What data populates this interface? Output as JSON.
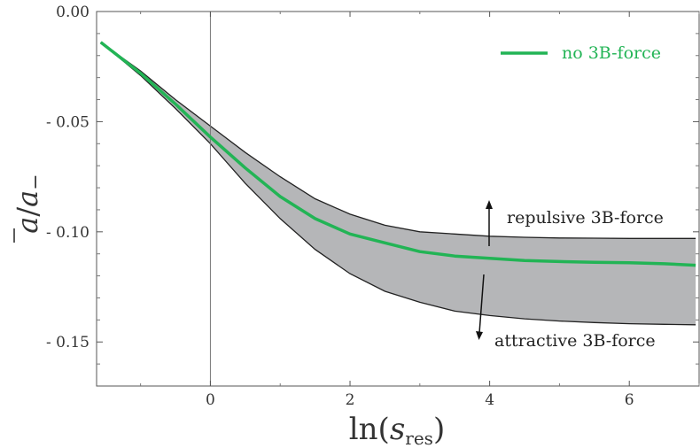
{
  "chart_data": {
    "type": "line",
    "xlabel": "ln(s_res)",
    "xlabel_parts": {
      "base": "ln(",
      "var": "s",
      "sub": "res",
      "close": ")"
    },
    "ylabel": "ā/a₋",
    "ylabel_parts": {
      "num": "a",
      "den": "a",
      "den_sub": "−"
    },
    "xlim": [
      -1.63,
      7.0
    ],
    "ylim": [
      -0.17,
      0.0
    ],
    "x_ticks": [
      0,
      2,
      4,
      6
    ],
    "x_tick_labels": [
      "0",
      "2",
      "4",
      "6"
    ],
    "y_ticks": [
      0.0,
      -0.05,
      -0.1,
      -0.15
    ],
    "y_tick_labels": [
      "0.00",
      "- 0.05",
      "- 0.10",
      "- 0.15"
    ],
    "vertical_line_x": 0,
    "grid": false,
    "legend_position": "top-right",
    "band": {
      "fill_color": "#b5b6b8",
      "line_color": "#222222",
      "x": [
        -1.57,
        -1.0,
        -0.5,
        0.0,
        0.5,
        1.0,
        1.5,
        2.0,
        2.5,
        3.0,
        3.5,
        4.0,
        4.5,
        5.0,
        5.5,
        6.0,
        6.5,
        6.95
      ],
      "upper": [
        -0.014,
        -0.027,
        -0.04,
        -0.052,
        -0.064,
        -0.075,
        -0.085,
        -0.092,
        -0.097,
        -0.1,
        -0.101,
        -0.102,
        -0.1025,
        -0.1028,
        -0.1029,
        -0.103,
        -0.103,
        -0.103
      ],
      "lower": [
        -0.014,
        -0.029,
        -0.044,
        -0.06,
        -0.078,
        -0.094,
        -0.108,
        -0.119,
        -0.127,
        -0.132,
        -0.136,
        -0.138,
        -0.1395,
        -0.1405,
        -0.1412,
        -0.1417,
        -0.142,
        -0.1422
      ]
    },
    "series": [
      {
        "name": "no 3B-force",
        "color": "#22b455",
        "x": [
          -1.57,
          -1.0,
          -0.5,
          0.0,
          0.5,
          1.0,
          1.5,
          2.0,
          2.5,
          3.0,
          3.5,
          4.0,
          4.5,
          5.0,
          5.5,
          6.0,
          6.5,
          6.95
        ],
        "values": [
          -0.014,
          -0.028,
          -0.042,
          -0.057,
          -0.071,
          -0.084,
          -0.094,
          -0.101,
          -0.105,
          -0.109,
          -0.111,
          -0.112,
          -0.113,
          -0.1135,
          -0.1138,
          -0.114,
          -0.1145,
          -0.1152
        ]
      }
    ],
    "annotations": {
      "repulsive": "repulsive 3B-force",
      "attractive": "attractive 3B-force"
    }
  }
}
